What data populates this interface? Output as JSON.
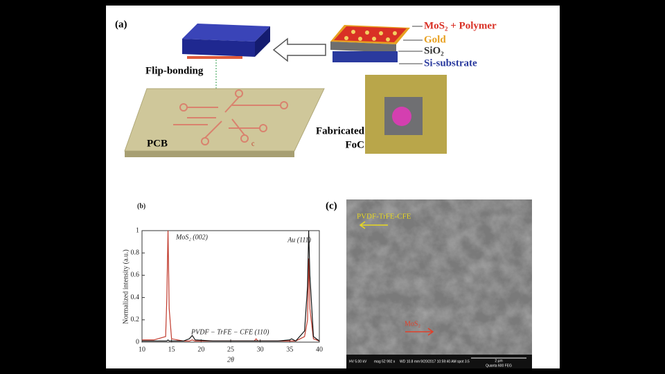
{
  "panel_a": {
    "label": "(a)",
    "flip_bonding": "Flip-bonding",
    "pcb": "PCB",
    "layers": [
      "MoS₂ + Polymer",
      "Gold",
      "SiO₂",
      "Si-substrate"
    ],
    "photo_caption": [
      "Fabricated",
      "FoC"
    ],
    "pcb_mark": "c"
  },
  "chart_data": {
    "type": "line",
    "label": "(b)",
    "xlabel": "2θ",
    "ylabel": "Normalized intensity (a.u.)",
    "x": [
      10,
      12,
      14,
      14.2,
      14.4,
      14.6,
      15,
      17,
      18,
      18.5,
      19,
      22,
      26,
      29,
      29.3,
      29.6,
      33,
      35,
      35.3,
      36,
      37.5,
      38,
      38.2,
      38.4,
      39,
      40
    ],
    "series": [
      {
        "color": "#c0392b",
        "values": [
          0.02,
          0.02,
          0.05,
          0.4,
          1.0,
          0.3,
          0.03,
          0.01,
          0.01,
          0.02,
          0.01,
          0.01,
          0.01,
          0.01,
          0.03,
          0.01,
          0.01,
          0.01,
          0.01,
          0.01,
          0.05,
          0.2,
          0.75,
          0.3,
          0.03,
          0.01
        ]
      },
      {
        "color": "#111111",
        "values": [
          0.01,
          0.01,
          0.01,
          0.01,
          0.02,
          0.01,
          0.01,
          0.01,
          0.03,
          0.06,
          0.02,
          0.01,
          0.01,
          0.01,
          0.01,
          0.01,
          0.01,
          0.02,
          0.03,
          0.01,
          0.1,
          0.5,
          1.0,
          0.6,
          0.05,
          0.01
        ]
      }
    ],
    "xlim": [
      10,
      40
    ],
    "xticks": [
      10,
      15,
      20,
      25,
      30,
      35,
      40
    ],
    "ylim": [
      0,
      1
    ],
    "yticks": [
      0,
      0.2,
      0.4,
      0.6,
      0.8,
      1
    ],
    "annotations": [
      "MoS₂ (002)",
      "Au (111)",
      "PVDF − TrFE − CFE (110)"
    ]
  },
  "panel_c": {
    "label": "(c)",
    "pvdf": "PVDF-TrFE-CFE",
    "mos2": "MoS₂",
    "info_bar": [
      "HV 5.00 kV",
      "mag 52 992 x",
      "WD 10.8 mm",
      "9/20/2017 10:59:40 AM",
      "spot 3.5",
      "2 µm",
      "Quanta 600 FEG"
    ]
  }
}
